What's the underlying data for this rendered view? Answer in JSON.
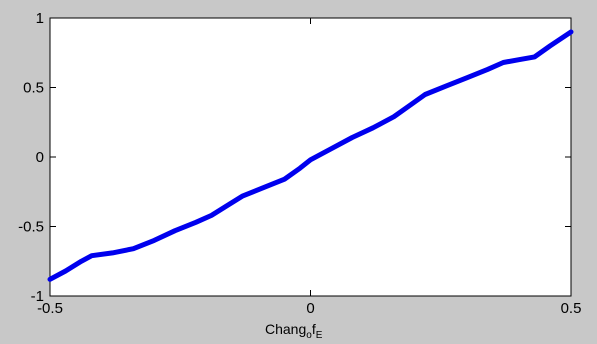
{
  "chart_data": {
    "type": "line",
    "xlabel": {
      "base": "Chang",
      "sub1": "o",
      "mid": "f",
      "sub2": "E"
    },
    "xlim": [
      -0.5,
      0.5
    ],
    "ylim": [
      -1,
      1
    ],
    "x_ticks": [
      -0.5,
      0,
      0.5
    ],
    "x_tick_labels": [
      "-0.5",
      "0",
      "0.5"
    ],
    "y_ticks": [
      1,
      0.5,
      0,
      -0.5,
      -1
    ],
    "y_tick_labels": [
      "1",
      "0.5",
      "0",
      "-0.5",
      "-1"
    ],
    "grid": false,
    "line_color": "#0000ee",
    "series": [
      {
        "x": [
          -0.5,
          -0.47,
          -0.44,
          -0.42,
          -0.38,
          -0.34,
          -0.3,
          -0.26,
          -0.22,
          -0.19,
          -0.16,
          -0.13,
          -0.09,
          -0.05,
          -0.02,
          0.0,
          0.04,
          0.08,
          0.12,
          0.16,
          0.19,
          0.22,
          0.26,
          0.3,
          0.34,
          0.37,
          0.4,
          0.43,
          0.46,
          0.5
        ],
        "y": [
          -0.88,
          -0.82,
          -0.75,
          -0.71,
          -0.69,
          -0.66,
          -0.6,
          -0.53,
          -0.47,
          -0.42,
          -0.35,
          -0.28,
          -0.22,
          -0.16,
          -0.08,
          -0.02,
          0.06,
          0.14,
          0.21,
          0.29,
          0.37,
          0.45,
          0.51,
          0.57,
          0.63,
          0.68,
          0.7,
          0.72,
          0.8,
          0.9
        ]
      }
    ]
  }
}
